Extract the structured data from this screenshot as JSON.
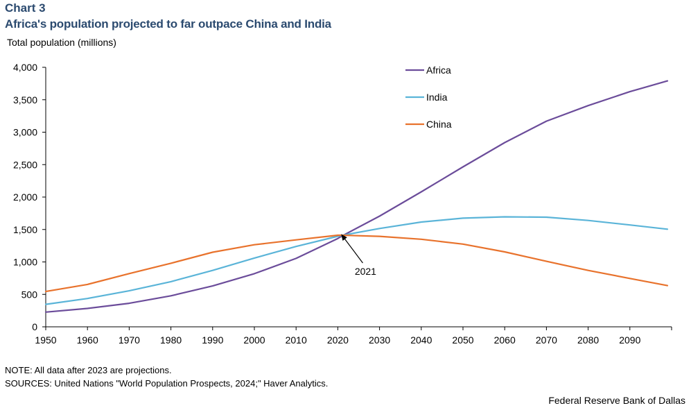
{
  "header": {
    "chart_label": "Chart 3",
    "title": "Africa's population projected to far outpace China and India"
  },
  "footer": {
    "note": "NOTE: All data after 2023 are projections.",
    "sources": "SOURCES: United Nations \"World Population Prospects, 2024;\" Haver Analytics.",
    "credit": "Federal Reserve Bank of Dallas"
  },
  "chart_data": {
    "type": "line",
    "title": "Africa's population projected to far outpace China and India",
    "ylabel": "Total population (millions)",
    "xlabel": "",
    "xlim": [
      1950,
      2100
    ],
    "ylim": [
      0,
      4000
    ],
    "x_ticks": [
      1950,
      1960,
      1970,
      1980,
      1990,
      2000,
      2010,
      2020,
      2030,
      2040,
      2050,
      2060,
      2070,
      2080,
      2090
    ],
    "y_ticks": [
      0,
      500,
      1000,
      1500,
      2000,
      2500,
      3000,
      3500,
      4000
    ],
    "y_tick_labels": [
      "0",
      "500",
      "1,000",
      "1,500",
      "2,000",
      "2,500",
      "3,000",
      "3,500",
      "4,000"
    ],
    "legend_position": "top-center",
    "grid": false,
    "x": [
      1950,
      1960,
      1970,
      1980,
      1990,
      2000,
      2010,
      2020,
      2021,
      2030,
      2040,
      2050,
      2060,
      2070,
      2080,
      2090,
      2099
    ],
    "series": [
      {
        "name": "Africa",
        "color": "#6b4c9a",
        "values": [
          227,
          283,
          363,
          478,
          630,
          819,
          1055,
          1361,
          1400,
          1706,
          2080,
          2465,
          2840,
          3170,
          3410,
          3625,
          3790
        ]
      },
      {
        "name": "India",
        "color": "#5ab4d8",
        "values": [
          346,
          436,
          555,
          696,
          870,
          1060,
          1238,
          1396,
          1410,
          1515,
          1615,
          1675,
          1695,
          1690,
          1640,
          1570,
          1505
        ]
      },
      {
        "name": "China",
        "color": "#e8722c",
        "values": [
          544,
          654,
          820,
          980,
          1150,
          1265,
          1340,
          1412,
          1412,
          1395,
          1350,
          1275,
          1155,
          1010,
          870,
          745,
          635
        ]
      }
    ],
    "annotations": [
      {
        "text": "2021",
        "x": 2021,
        "y": 1412
      }
    ]
  }
}
